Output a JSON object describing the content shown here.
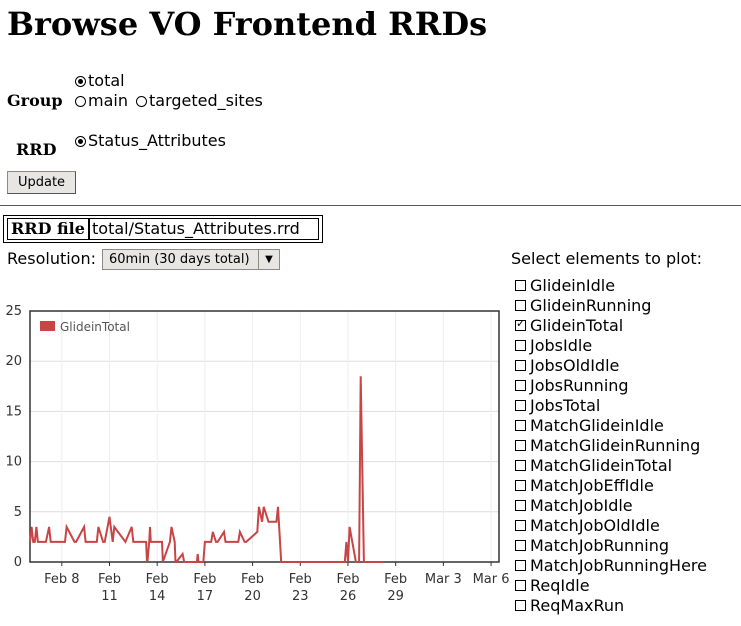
{
  "page": {
    "title": "Browse VO Frontend RRDs"
  },
  "group": {
    "label": "Group",
    "options": [
      {
        "label": "total",
        "selected": true
      },
      {
        "label": "main",
        "selected": false
      },
      {
        "label": "targeted_sites",
        "selected": false
      }
    ]
  },
  "rrd": {
    "label": "RRD",
    "options": [
      {
        "label": "Status_Attributes",
        "selected": true
      }
    ]
  },
  "update_label": "Update",
  "rrd_file": {
    "label": "RRD file",
    "value": "total/Status_Attributes.rrd"
  },
  "resolution": {
    "label": "Resolution:",
    "selected": "60min (30 days total)"
  },
  "elements": {
    "heading": "Select elements to plot:",
    "items": [
      {
        "label": "GlideinIdle",
        "checked": false
      },
      {
        "label": "GlideinRunning",
        "checked": false
      },
      {
        "label": "GlideinTotal",
        "checked": true
      },
      {
        "label": "JobsIdle",
        "checked": false
      },
      {
        "label": "JobsOldIdle",
        "checked": false
      },
      {
        "label": "JobsRunning",
        "checked": false
      },
      {
        "label": "JobsTotal",
        "checked": false
      },
      {
        "label": "MatchGlideinIdle",
        "checked": false
      },
      {
        "label": "MatchGlideinRunning",
        "checked": false
      },
      {
        "label": "MatchGlideinTotal",
        "checked": false
      },
      {
        "label": "MatchJobEffIdle",
        "checked": false
      },
      {
        "label": "MatchJobIdle",
        "checked": false
      },
      {
        "label": "MatchJobOldIdle",
        "checked": false
      },
      {
        "label": "MatchJobRunning",
        "checked": false
      },
      {
        "label": "MatchJobRunningHere",
        "checked": false
      },
      {
        "label": "ReqIdle",
        "checked": false
      },
      {
        "label": "ReqMaxRun",
        "checked": false
      }
    ]
  },
  "chart_data": {
    "type": "line",
    "series": [
      {
        "name": "GlideinTotal",
        "color": "#c84545",
        "x": [
          6,
          6.1,
          6.2,
          6.3,
          6.4,
          6.5,
          7,
          7.2,
          7.3,
          8.2,
          8.3,
          8.8,
          8.9,
          9.4,
          9.5,
          10.2,
          10.3,
          10.6,
          10.7,
          11,
          11.2,
          11.3,
          12,
          12.4,
          12.5,
          13.3,
          13.35,
          13.4,
          13.5,
          13.55,
          13.6,
          14.3,
          14.35,
          14.4,
          14.8,
          14.9,
          15.1,
          15.15,
          15.2,
          15.6,
          15.7,
          16.5,
          16.55,
          16.6,
          16.9,
          17,
          17.2,
          17.4,
          17.5,
          17.7,
          17.8,
          18.2,
          18.3,
          18.5,
          19.1,
          19.2,
          19.5,
          19.6,
          20.3,
          20.4,
          20.6,
          20.7,
          21,
          21.1,
          21.5,
          21.6,
          21.8,
          25.8,
          25.9,
          26,
          26.1,
          26.5,
          26.6,
          26.7,
          26.8,
          27,
          27.05,
          27.1,
          27.2,
          27.3,
          27.5,
          27.6,
          28.2
        ],
        "values": [
          2,
          3.5,
          2,
          2,
          3.5,
          2,
          2,
          3.5,
          2,
          2,
          3.5,
          2,
          2,
          3.5,
          2,
          2,
          3.5,
          2,
          2,
          4.5,
          2,
          3.5,
          2,
          3.5,
          2,
          2,
          0.2,
          0.2,
          2,
          3.5,
          2,
          2,
          0.2,
          0.2,
          2,
          3.5,
          2,
          0,
          0,
          0.8,
          0,
          0,
          0.8,
          0,
          0,
          2,
          2,
          2,
          3,
          2,
          2,
          3,
          2,
          2,
          2,
          3,
          2,
          2,
          3,
          5.5,
          4,
          5.5,
          4,
          4,
          4,
          5.5,
          0,
          0,
          2,
          0,
          3.5,
          0,
          0,
          0,
          18.5,
          0,
          0,
          0,
          0,
          0,
          0,
          0,
          0
        ]
      }
    ],
    "x_ticks": [
      {
        "x": 8,
        "label": "Feb 8"
      },
      {
        "x": 11,
        "label": "Feb\n11"
      },
      {
        "x": 14,
        "label": "Feb\n14"
      },
      {
        "x": 17,
        "label": "Feb\n17"
      },
      {
        "x": 20,
        "label": "Feb\n20"
      },
      {
        "x": 23,
        "label": "Feb\n23"
      },
      {
        "x": 26,
        "label": "Feb\n26"
      },
      {
        "x": 29,
        "label": "Feb\n29"
      },
      {
        "x": 32,
        "label": "Mar 3"
      },
      {
        "x": 35,
        "label": "Mar 6"
      }
    ],
    "xlim": [
      6,
      35.5
    ],
    "ylim": [
      0,
      25
    ],
    "y_ticks": [
      0,
      5,
      10,
      15,
      20,
      25
    ],
    "grid": true,
    "legend": "top-left"
  }
}
